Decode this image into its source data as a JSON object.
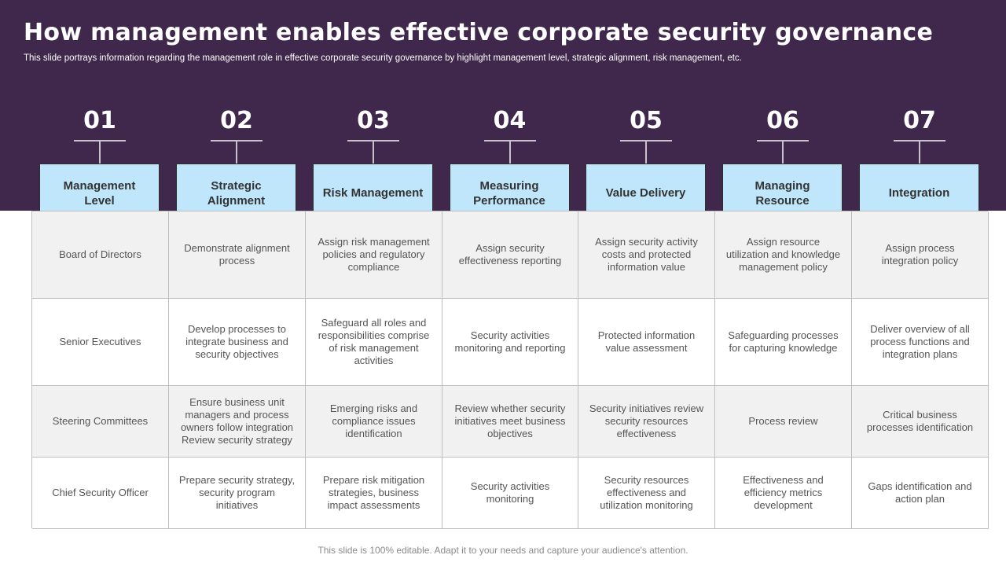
{
  "header": {
    "title": "How management enables effective corporate security governance",
    "subtitle": "This slide portrays information regarding the management role in effective corporate security governance by highlight management level, strategic alignment, risk management, etc."
  },
  "columns": [
    {
      "number": "01",
      "label": "Management Level"
    },
    {
      "number": "02",
      "label": "Strategic Alignment"
    },
    {
      "number": "03",
      "label": "Risk Management"
    },
    {
      "number": "04",
      "label": "Measuring Performance"
    },
    {
      "number": "05",
      "label": "Value Delivery"
    },
    {
      "number": "06",
      "label": "Managing Resource"
    },
    {
      "number": "07",
      "label": "Integration"
    }
  ],
  "rows": [
    [
      "Board of Directors",
      "Demonstrate alignment process",
      "Assign risk management policies and regulatory compliance",
      "Assign security effectiveness reporting",
      "Assign security activity costs and protected information value",
      "Assign resource utilization and knowledge management policy",
      "Assign process integration policy"
    ],
    [
      "Senior Executives",
      "Develop processes to integrate business and security objectives",
      "Safeguard all roles and responsibilities comprise of risk management activities",
      "Security activities monitoring and reporting",
      "Protected information value assessment",
      "Safeguarding processes for capturing knowledge",
      "Deliver overview of all process functions and integration plans"
    ],
    [
      "Steering Committees",
      "Ensure business unit managers and process owners follow integration Review security strategy",
      "Emerging risks and compliance issues identification",
      "Review whether security initiatives meet business objectives",
      "Security initiatives review security resources effectiveness",
      "Process review",
      "Critical business processes identification"
    ],
    [
      "Chief Security Officer",
      "Prepare security strategy, security program initiatives",
      "Prepare risk mitigation strategies, business impact assessments",
      "Security activities monitoring",
      "Security resources effectiveness and utilization monitoring",
      "Effectiveness and efficiency metrics development",
      "Gaps identification and action plan"
    ]
  ],
  "footer": {
    "note": "This slide is 100% editable. Adapt it to your needs and capture your audience's attention."
  },
  "colors": {
    "banner": "#3f284b",
    "header_box": "#bfe6fb",
    "shaded_row": "#f1f1f1"
  }
}
